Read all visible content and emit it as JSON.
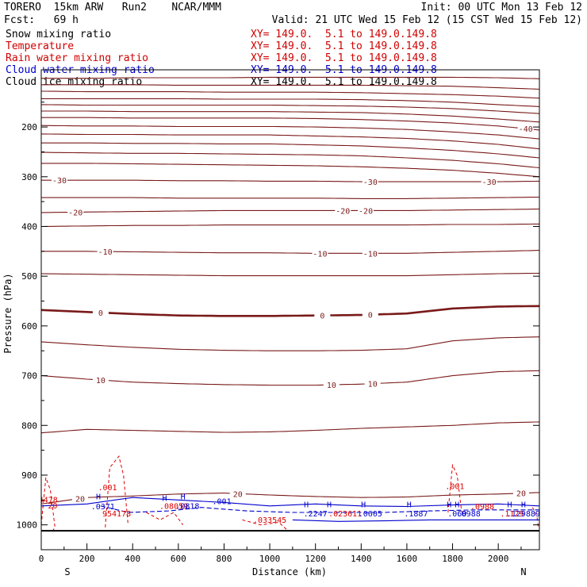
{
  "header": {
    "model": "TORERO  15km ARW   Run2    NCAR/MMM",
    "init": "Init: 00 UTC Mon 13 Feb 12",
    "fcst": "Fcst:   69 h",
    "valid": "Valid: 21 UTC Wed 15 Feb 12 (15 CST Wed 15 Feb 12)"
  },
  "legend": [
    {
      "name": "Snow mixing ratio",
      "xy": "XY= 149.0.  5.1 to 149.0.149.8",
      "color": "#000000"
    },
    {
      "name": "Temperature",
      "xy": "XY= 149.0.  5.1 to 149.0.149.8",
      "color": "#d00000"
    },
    {
      "name": "Rain water mixing ratio",
      "xy": "XY= 149.0.  5.1 to 149.0.149.8",
      "color": "#d00000"
    },
    {
      "name": "Cloud water mixing ratio",
      "xy": "XY= 149.0.  5.1 to 149.0.149.8",
      "color": "#0000cc"
    },
    {
      "name": "Cloud ice mixing ratio",
      "xy": "XY= 149.0.  5.1 to 149.0.149.8",
      "color": "#000000"
    }
  ],
  "colors": {
    "temperature": "#7a1a1a",
    "rain": "#dd0000",
    "cloud_water": "#0000cc",
    "axis": "#000000"
  },
  "chart_data": {
    "type": "line",
    "title": "Cross section: Temperature, Rain / Cloud water mixing ratio",
    "xlabel": "Distance (km)",
    "ylabel": "Pressure (hPa)",
    "xlim": [
      0,
      2180
    ],
    "ylim": [
      1050,
      85
    ],
    "y_scale": "linear",
    "x_ticks": [
      0,
      200,
      400,
      600,
      800,
      1000,
      1200,
      1400,
      1600,
      1800,
      2000
    ],
    "x_tick_labels": [
      "0",
      "200",
      "400",
      "600",
      "800",
      "1000",
      "1200",
      "1400",
      "1600",
      "1800",
      "2000"
    ],
    "y_ticks": [
      200,
      300,
      400,
      500,
      600,
      700,
      800,
      900,
      1000
    ],
    "y_tick_labels": [
      "200",
      "300",
      "400",
      "500",
      "600",
      "700",
      "800",
      "900",
      "1000"
    ],
    "side_labels": {
      "left": "S",
      "right": "N"
    },
    "surface_pressure": 1012,
    "x_nodes": [
      0,
      200,
      400,
      600,
      800,
      1000,
      1200,
      1400,
      1600,
      1800,
      2000,
      2180
    ],
    "isotherms": [
      {
        "pressure": [
          102,
          102,
          101,
          101,
          101,
          100,
          100,
          100,
          100,
          100,
          101,
          103
        ]
      },
      {
        "pressure": [
          115,
          115,
          115,
          116,
          116,
          116,
          116,
          116,
          117,
          118,
          121,
          124
        ]
      },
      {
        "pressure": [
          128,
          129,
          129,
          129,
          130,
          130,
          130,
          131,
          133,
          135,
          138,
          142
        ]
      },
      {
        "pressure": [
          143,
          143,
          143,
          143,
          144,
          144,
          144,
          145,
          147,
          150,
          155,
          159
        ],
        "label": "",
        "label_x": []
      },
      {
        "pressure": [
          155,
          156,
          156,
          156,
          156,
          156,
          157,
          158,
          160,
          163,
          168,
          173
        ]
      },
      {
        "pressure": [
          168,
          168,
          169,
          169,
          169,
          169,
          170,
          171,
          174,
          178,
          184,
          190
        ]
      },
      {
        "pressure": [
          181,
          181,
          182,
          182,
          182,
          182,
          183,
          185,
          188,
          192,
          198,
          206
        ],
        "label": "-40",
        "label_x": [
          2120
        ]
      },
      {
        "pressure": [
          197,
          198,
          198,
          199,
          199,
          199,
          200,
          202,
          205,
          210,
          216,
          224
        ]
      },
      {
        "pressure": [
          214,
          215,
          215,
          216,
          216,
          216,
          218,
          220,
          223,
          228,
          235,
          244
        ]
      },
      {
        "pressure": [
          232,
          232,
          233,
          233,
          234,
          234,
          236,
          238,
          242,
          247,
          254,
          262
        ]
      },
      {
        "pressure": [
          251,
          252,
          253,
          253,
          254,
          255,
          256,
          258,
          262,
          267,
          274,
          282
        ]
      },
      {
        "pressure": [
          273,
          273,
          274,
          275,
          276,
          277,
          278,
          280,
          283,
          287,
          293,
          300
        ]
      },
      {
        "pressure": [
          307,
          307,
          307,
          308,
          308,
          309,
          309,
          310,
          310,
          310,
          310,
          309
        ],
        "label": "-30",
        "label_x": [
          80,
          1440,
          1960
        ]
      },
      {
        "pressure": [
          342,
          342,
          342,
          343,
          343,
          343,
          343,
          344,
          344,
          343,
          342,
          341
        ]
      },
      {
        "pressure": [
          372,
          371,
          370,
          369,
          368,
          368,
          368,
          368,
          368,
          367,
          366,
          365
        ],
        "label": "-20",
        "label_x": [
          150,
          1320,
          1420
        ]
      },
      {
        "pressure": [
          400,
          399,
          398,
          398,
          397,
          397,
          397,
          397,
          397,
          396,
          396,
          395
        ]
      },
      {
        "pressure": [
          450,
          450,
          451,
          452,
          453,
          453,
          454,
          454,
          454,
          452,
          450,
          448
        ],
        "label": "-10",
        "label_x": [
          280,
          1220,
          1440
        ]
      },
      {
        "pressure": [
          495,
          496,
          497,
          498,
          499,
          499,
          499,
          499,
          499,
          497,
          495,
          494
        ]
      },
      {
        "pressure": [
          568,
          572,
          576,
          579,
          580,
          580,
          579,
          578,
          575,
          565,
          561,
          560
        ],
        "label": "0",
        "label_x": [
          260,
          1230,
          1440
        ],
        "bold": true
      },
      {
        "pressure": [
          632,
          638,
          643,
          647,
          649,
          650,
          650,
          649,
          646,
          630,
          624,
          622
        ]
      },
      {
        "pressure": [
          700,
          707,
          713,
          716,
          718,
          719,
          719,
          717,
          713,
          700,
          692,
          690
        ],
        "label": "10",
        "label_x": [
          260,
          1270,
          1450
        ]
      },
      {
        "pressure": [
          815,
          808,
          810,
          812,
          814,
          813,
          810,
          806,
          803,
          800,
          795,
          793
        ]
      },
      {
        "pressure": [
          958,
          945,
          942,
          938,
          936,
          940,
          943,
          945,
          944,
          940,
          938,
          935
        ],
        "label": "20",
        "label_x": [
          170,
          860,
          2100
        ]
      }
    ],
    "rain_contour_labels": [
      {
        "text": ".001",
        "x": 290,
        "p": 930
      },
      {
        "text": ".001",
        "x": 1810,
        "p": 928
      }
    ],
    "cloud_water_labels": [
      {
        "text": ".0371",
        "x": 270,
        "p": 969
      },
      {
        "text": ".001",
        "x": 790,
        "p": 958
      },
      {
        "text": ".0818",
        "x": 640,
        "p": 968
      },
      {
        "text": ".2247",
        "x": 1200,
        "p": 983
      },
      {
        "text": ".0605",
        "x": 1440,
        "p": 983
      },
      {
        "text": ".1887",
        "x": 1640,
        "p": 983
      },
      {
        "text": ".060",
        "x": 1820,
        "p": 983
      },
      {
        "text": ".0988",
        "x": 1870,
        "p": 983
      },
      {
        "text": ".129889",
        "x": 2110,
        "p": 983
      }
    ],
    "rain_value_labels": [
      {
        "text": "94478",
        "x": 20,
        "p": 955
      },
      {
        "text": "954178",
        "x": 330,
        "p": 983
      },
      {
        "text": ".08059",
        "x": 580,
        "p": 968
      },
      {
        "text": ".033545",
        "x": 1000,
        "p": 996
      },
      {
        "text": ".023611",
        "x": 1330,
        "p": 983
      },
      {
        "text": ".0988",
        "x": 1930,
        "p": 969
      },
      {
        "text": ".1129",
        "x": 2060,
        "p": 983
      },
      {
        "text": "20",
        "x": 50,
        "p": 967
      }
    ],
    "maxima_markers": [
      {
        "text": "H",
        "x": 250,
        "p": 949
      },
      {
        "text": "H",
        "x": 540,
        "p": 952
      },
      {
        "text": "H",
        "x": 620,
        "p": 949
      },
      {
        "text": "H",
        "x": 1160,
        "p": 965
      },
      {
        "text": "H",
        "x": 1260,
        "p": 965
      },
      {
        "text": "H",
        "x": 1410,
        "p": 965
      },
      {
        "text": "H",
        "x": 1610,
        "p": 965
      },
      {
        "text": "H",
        "x": 1785,
        "p": 965
      },
      {
        "text": "H",
        "x": 1820,
        "p": 965
      },
      {
        "text": "H",
        "x": 2050,
        "p": 965
      },
      {
        "text": "H",
        "x": 2110,
        "p": 965
      }
    ]
  }
}
